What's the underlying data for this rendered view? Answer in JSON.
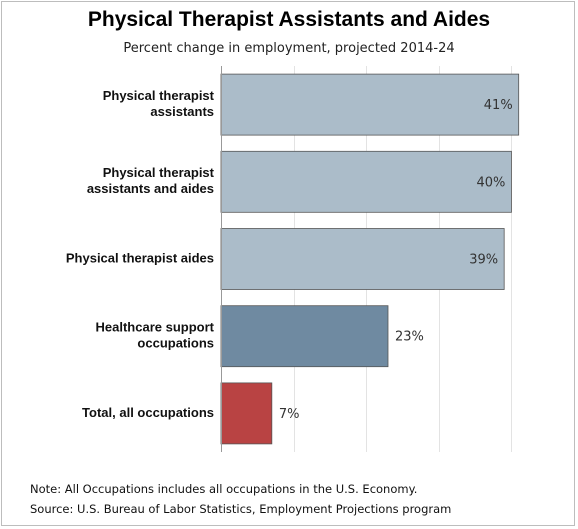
{
  "chart_data": {
    "type": "bar",
    "orientation": "horizontal",
    "title": "Physical Therapist Assistants and Aides",
    "subtitle": "Percent change in employment, projected 2014-24",
    "categories": [
      [
        "Physical therapist",
        "assistants"
      ],
      [
        "Physical therapist",
        "assistants and aides"
      ],
      [
        "Physical therapist aides"
      ],
      [
        "Healthcare support",
        "occupations"
      ],
      [
        "Total, all occupations"
      ]
    ],
    "values": [
      41,
      40,
      39,
      23,
      7
    ],
    "value_labels": [
      "41%",
      "40%",
      "39%",
      "23%",
      "7%"
    ],
    "colors": [
      "#abbcc9",
      "#abbcc9",
      "#abbcc9",
      "#6f8aa1",
      "#b94343"
    ],
    "xlim": [
      0,
      46
    ],
    "gridlines": [
      10,
      20,
      30,
      40
    ],
    "grid": true
  },
  "footer": {
    "note": "Note: All Occupations includes all occupations in the U.S. Economy.",
    "source": "Source: U.S. Bureau of Labor Statistics, Employment Projections program"
  }
}
